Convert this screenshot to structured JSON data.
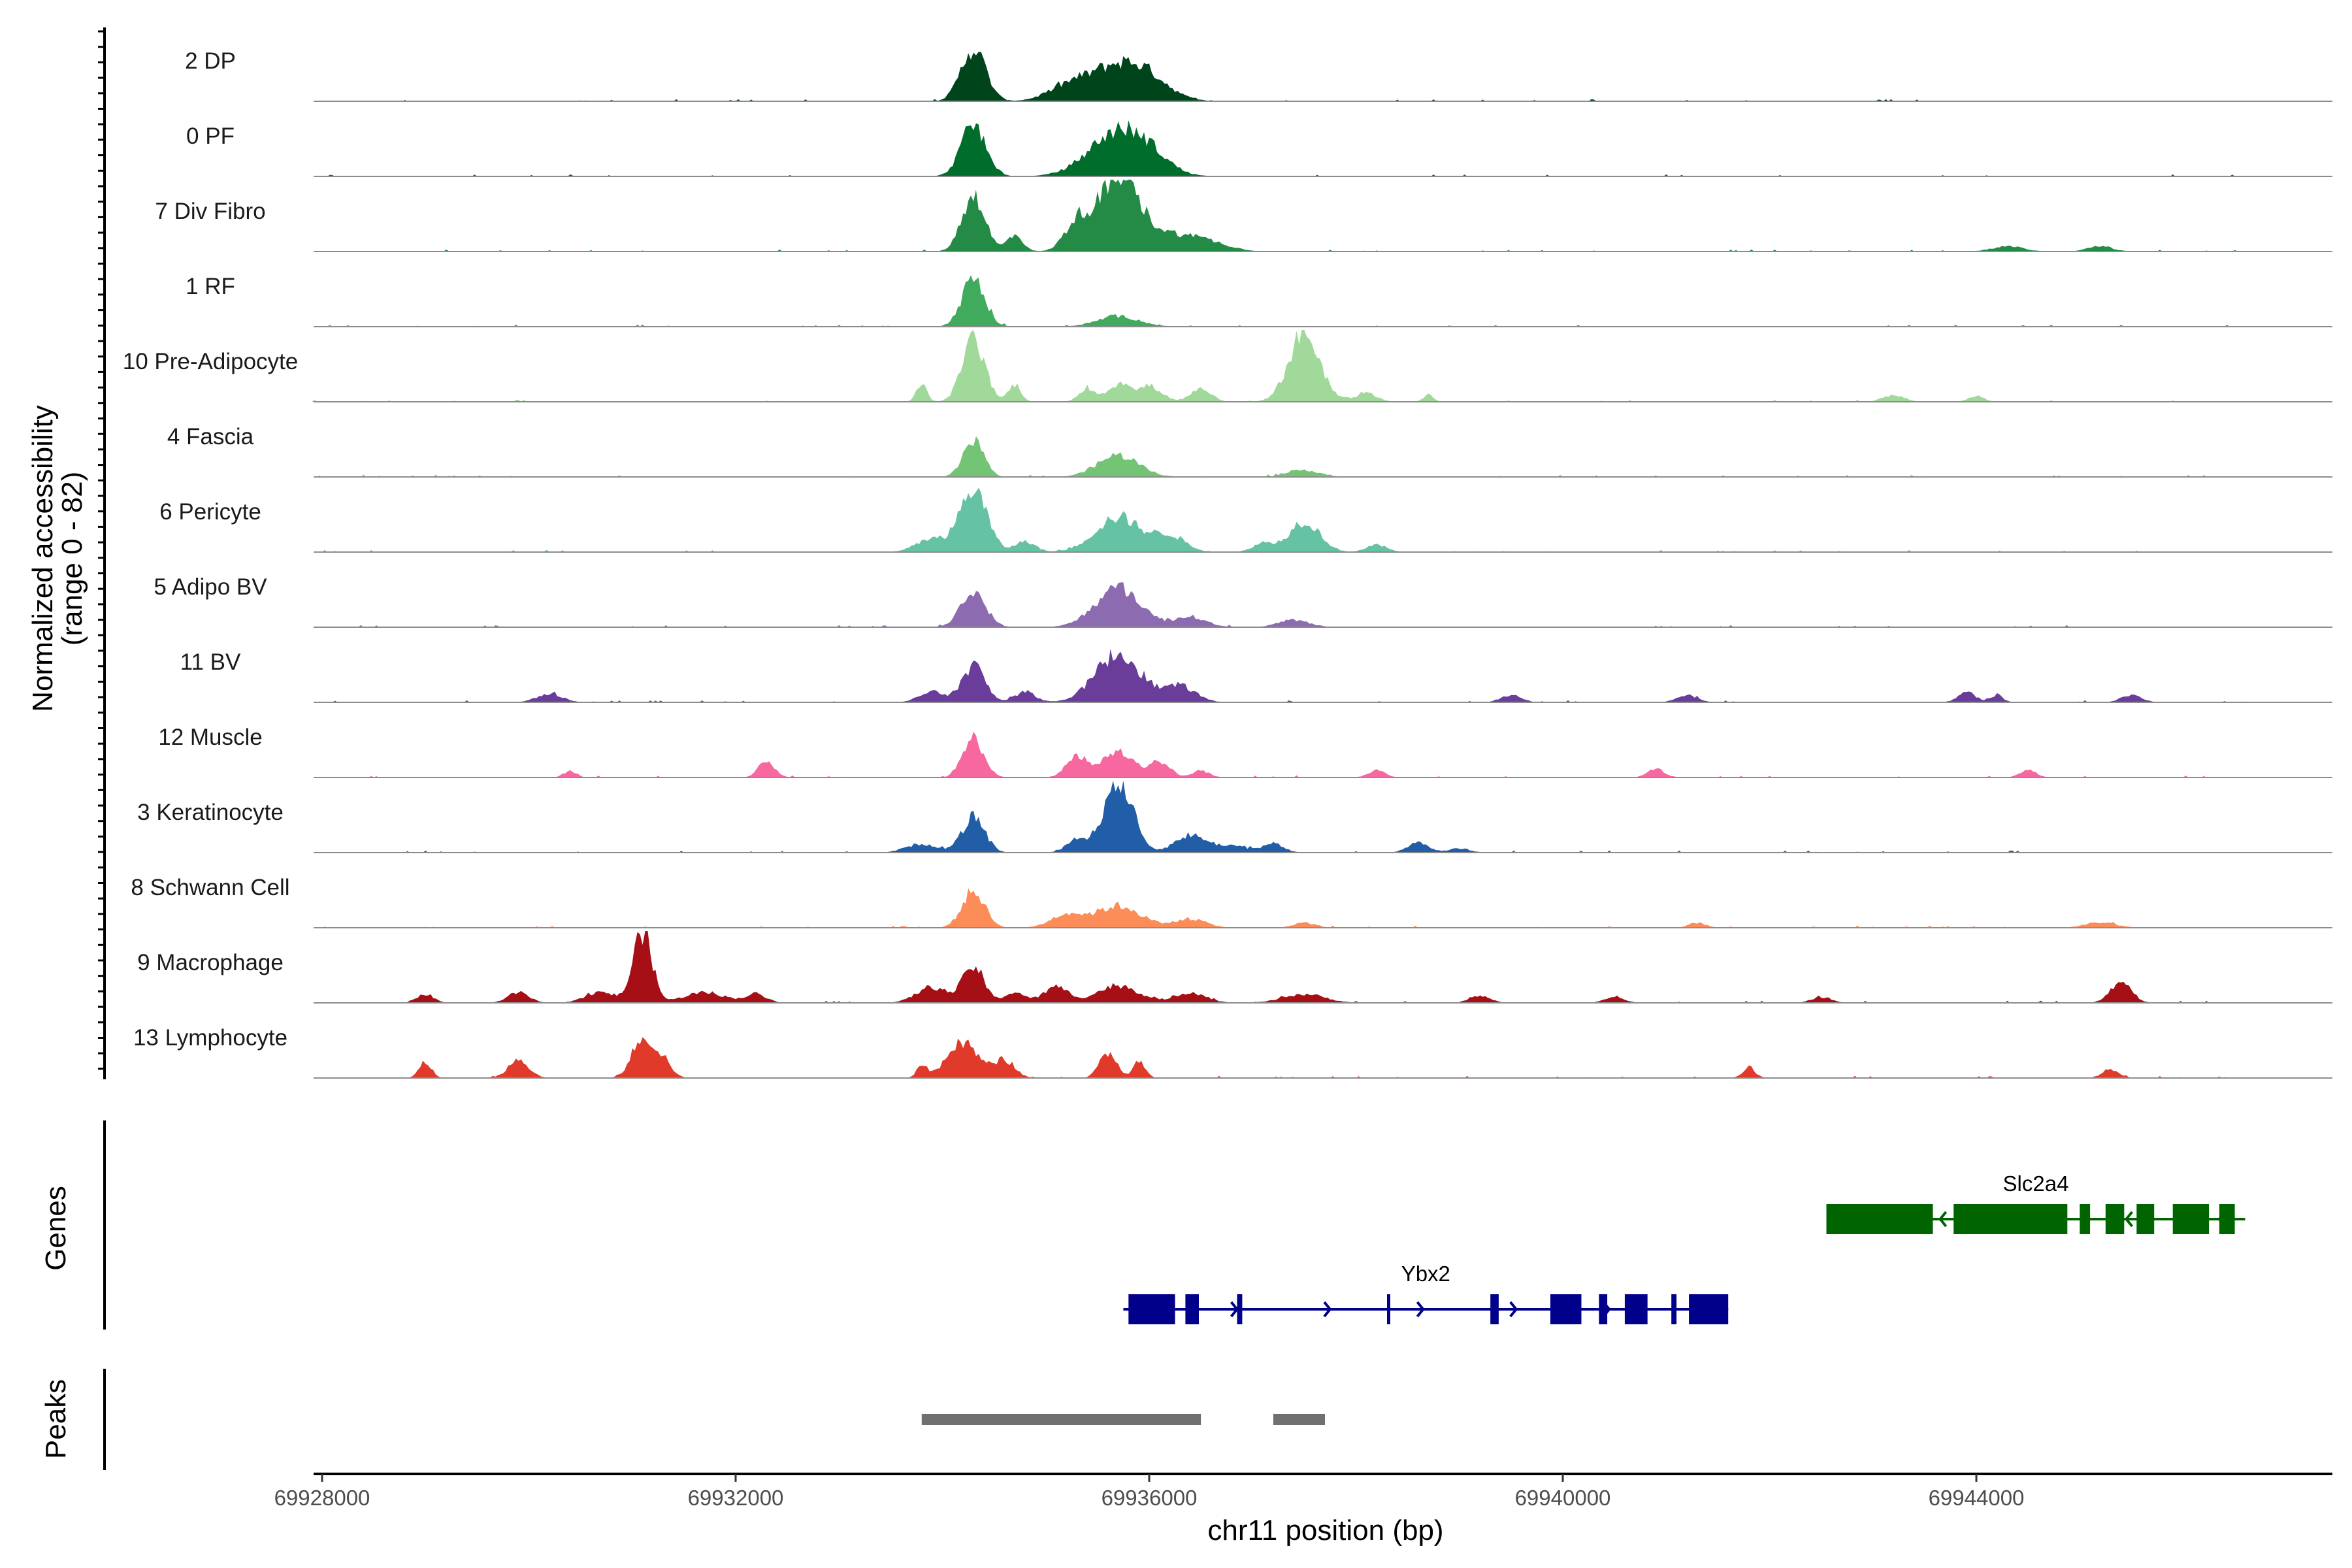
{
  "chart_data": {
    "type": "area",
    "subtype": "genome-coverage-track",
    "y_axis_title_line1": "Normalized accessibility",
    "y_axis_title_line2": "(range 0 - 82)",
    "y_range": [
      0,
      82
    ],
    "x_axis_title": "chr11 position (bp)",
    "x_range": [
      69928000,
      69947500
    ],
    "x_ticks": [
      69928000,
      69932000,
      69936000,
      69940000,
      69944000
    ],
    "x_tick_labels": [
      "69928000",
      "69932000",
      "69936000",
      "69940000",
      "69944000"
    ],
    "track_start": 69927900,
    "track_end": 69946600,
    "grid": false,
    "tracks": [
      {
        "name": "2 DP",
        "color": "#00441b",
        "peaks": [
          [
            69934300,
            120,
            60
          ],
          [
            69935700,
            300,
            40
          ],
          [
            69935200,
            200,
            12
          ],
          [
            69936000,
            200,
            12
          ]
        ]
      },
      {
        "name": "0 PF",
        "color": "#006d2c",
        "peaks": [
          [
            69934300,
            120,
            58
          ],
          [
            69935700,
            280,
            50
          ],
          [
            69936000,
            200,
            12
          ]
        ]
      },
      {
        "name": "7 Div Fibro",
        "color": "#238b45",
        "peaks": [
          [
            69934300,
            110,
            65
          ],
          [
            69934700,
            80,
            18
          ],
          [
            69935700,
            200,
            82
          ],
          [
            69935300,
            120,
            30
          ],
          [
            69936200,
            250,
            18
          ],
          [
            69936600,
            200,
            8
          ],
          [
            69944300,
            150,
            6
          ],
          [
            69945200,
            120,
            6
          ]
        ]
      },
      {
        "name": "1 RF",
        "color": "#41ab5d",
        "peaks": [
          [
            69934300,
            110,
            55
          ],
          [
            69935700,
            200,
            12
          ]
        ]
      },
      {
        "name": "10 Pre-Adipocyte",
        "color": "#a1d99b",
        "peaks": [
          [
            69933800,
            50,
            20
          ],
          [
            69934300,
            110,
            70
          ],
          [
            69934700,
            60,
            20
          ],
          [
            69935400,
            80,
            15
          ],
          [
            69935700,
            100,
            20
          ],
          [
            69936000,
            120,
            18
          ],
          [
            69936500,
            100,
            15
          ],
          [
            69937500,
            150,
            78
          ],
          [
            69938100,
            100,
            10
          ],
          [
            69938700,
            50,
            8
          ],
          [
            69943200,
            100,
            8
          ],
          [
            69944000,
            80,
            6
          ]
        ]
      },
      {
        "name": "4 Fascia",
        "color": "#74c476",
        "peaks": [
          [
            69934300,
            100,
            40
          ],
          [
            69935700,
            200,
            25
          ],
          [
            69937500,
            150,
            8
          ]
        ]
      },
      {
        "name": "6 Pericyte",
        "color": "#66c2a4",
        "peaks": [
          [
            69934300,
            130,
            72
          ],
          [
            69933900,
            150,
            15
          ],
          [
            69934800,
            100,
            12
          ],
          [
            69935700,
            220,
            40
          ],
          [
            69936200,
            150,
            18
          ],
          [
            69937500,
            150,
            35
          ],
          [
            69937100,
            100,
            10
          ],
          [
            69938200,
            100,
            8
          ]
        ]
      },
      {
        "name": "5 Adipo BV",
        "color": "#8c6bb1",
        "peaks": [
          [
            69934300,
            120,
            40
          ],
          [
            69935700,
            220,
            45
          ],
          [
            69936400,
            150,
            12
          ],
          [
            69937400,
            150,
            8
          ]
        ]
      },
      {
        "name": "11 BV",
        "color": "#6a3d9a",
        "peaks": [
          [
            69930200,
            120,
            10
          ],
          [
            69934300,
            110,
            42
          ],
          [
            69933900,
            120,
            12
          ],
          [
            69934800,
            100,
            12
          ],
          [
            69935700,
            220,
            55
          ],
          [
            69936300,
            150,
            18
          ],
          [
            69939500,
            100,
            8
          ],
          [
            69941200,
            100,
            8
          ],
          [
            69943900,
            80,
            12
          ],
          [
            69944200,
            60,
            8
          ],
          [
            69945500,
            100,
            8
          ]
        ]
      },
      {
        "name": "12 Muscle",
        "color": "#f768a1",
        "peaks": [
          [
            69930400,
            60,
            8
          ],
          [
            69932300,
            80,
            18
          ],
          [
            69934300,
            100,
            45
          ],
          [
            69935300,
            100,
            25
          ],
          [
            69935700,
            150,
            30
          ],
          [
            69936100,
            100,
            18
          ],
          [
            69936500,
            80,
            8
          ],
          [
            69938200,
            80,
            8
          ],
          [
            69940900,
            80,
            10
          ],
          [
            69944500,
            80,
            8
          ]
        ]
      },
      {
        "name": "3 Keratinocyte",
        "color": "#225ea8",
        "peaks": [
          [
            69933800,
            150,
            10
          ],
          [
            69934300,
            110,
            40
          ],
          [
            69935700,
            140,
            82
          ],
          [
            69935300,
            100,
            15
          ],
          [
            69936400,
            150,
            20
          ],
          [
            69936800,
            150,
            8
          ],
          [
            69937200,
            100,
            10
          ],
          [
            69938600,
            100,
            12
          ],
          [
            69939000,
            100,
            5
          ]
        ]
      },
      {
        "name": "8 Schwann Cell",
        "color": "#fc8d59",
        "peaks": [
          [
            69934300,
            110,
            42
          ],
          [
            69935200,
            150,
            15
          ],
          [
            69935700,
            220,
            25
          ],
          [
            69936400,
            150,
            10
          ],
          [
            69937500,
            100,
            6
          ],
          [
            69941300,
            80,
            6
          ],
          [
            69945200,
            150,
            6
          ]
        ]
      },
      {
        "name": "9 Macrophage",
        "color": "#a50f15",
        "peaks": [
          [
            69929000,
            80,
            10
          ],
          [
            69929900,
            100,
            12
          ],
          [
            69931100,
            90,
            82
          ],
          [
            69930700,
            150,
            12
          ],
          [
            69931700,
            200,
            12
          ],
          [
            69932200,
            100,
            10
          ],
          [
            69933900,
            150,
            18
          ],
          [
            69934300,
            100,
            42
          ],
          [
            69934700,
            100,
            12
          ],
          [
            69935100,
            120,
            18
          ],
          [
            69935700,
            200,
            20
          ],
          [
            69936400,
            150,
            12
          ],
          [
            69937500,
            200,
            10
          ],
          [
            69939200,
            100,
            8
          ],
          [
            69940500,
            100,
            6
          ],
          [
            69942500,
            100,
            6
          ],
          [
            69945400,
            100,
            25
          ]
        ]
      },
      {
        "name": "13 Lymphocyte",
        "color": "#e03a2b",
        "peaks": [
          [
            69929000,
            60,
            18
          ],
          [
            69929900,
            100,
            20
          ],
          [
            69931100,
            100,
            48
          ],
          [
            69931300,
            80,
            20
          ],
          [
            69933800,
            50,
            14
          ],
          [
            69934200,
            150,
            40
          ],
          [
            69934600,
            100,
            20
          ],
          [
            69935600,
            80,
            30
          ],
          [
            69935900,
            60,
            18
          ],
          [
            69941800,
            60,
            12
          ],
          [
            69945300,
            80,
            10
          ]
        ]
      }
    ],
    "genes_panel_title": "Genes",
    "genes": [
      {
        "name": "Slc2a4",
        "strand": "-",
        "color": "#006400",
        "start": 69942550,
        "end": 69946600,
        "exons": [
          [
            69942550,
            69943580
          ],
          [
            69943780,
            69944880
          ],
          [
            69945000,
            69945100
          ],
          [
            69945250,
            69945430
          ],
          [
            69945550,
            69945720
          ],
          [
            69945900,
            69946250
          ],
          [
            69946350,
            69946500
          ]
        ]
      },
      {
        "name": "Ybx2",
        "strand": "+",
        "color": "#00008b",
        "start": 69935750,
        "end": 69941600,
        "exons": [
          [
            69935800,
            69936250
          ],
          [
            69936350,
            69936480
          ],
          [
            69936850,
            69936900
          ],
          [
            69938300,
            69938320
          ],
          [
            69939300,
            69939380
          ],
          [
            69939880,
            69940180
          ],
          [
            69940350,
            69940430
          ],
          [
            69940600,
            69940820
          ],
          [
            69941050,
            69941100
          ],
          [
            69941220,
            69941600
          ]
        ]
      }
    ],
    "peaks_panel_title": "Peaks",
    "peak_regions": [
      [
        69933800,
        69936500
      ],
      [
        69937200,
        69937700
      ]
    ],
    "colors": {
      "baseline": "#8c8c8c",
      "peak_bar": "#707070",
      "axis": "#000000"
    }
  }
}
